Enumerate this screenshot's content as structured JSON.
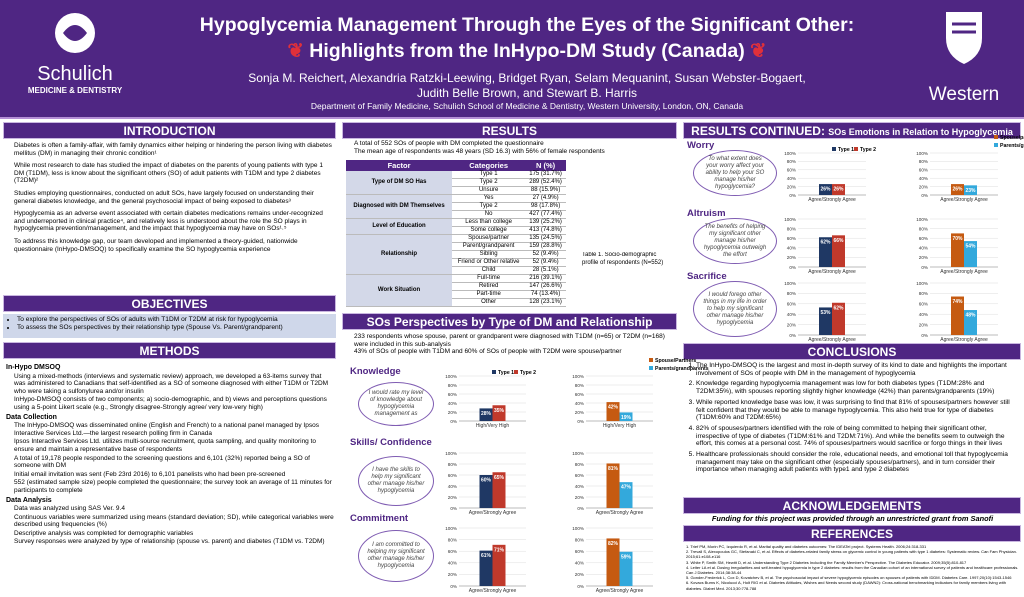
{
  "header": {
    "title_line1": "Hypoglycemia Management Through the Eyes of the Significant Other:",
    "title_line2": "Highlights from the InHypo-DM Study (Canada)",
    "authors_line1": "Sonja M. Reichert, Alexandria Ratzki-Leewing, Bridget Ryan, Selam Mequanint, Susan Webster-Bogaert,",
    "authors_line2": "Judith Belle Brown, and Stewart B. Harris",
    "affiliation": "Department of Family Medicine, Schulich School of Medicine & Dentistry, Western University, London, ON, Canada",
    "logo_left_name": "Schulich",
    "logo_left_sub": "MEDICINE & DENTISTRY",
    "logo_right_name": "Western"
  },
  "intro": {
    "heading": "INTRODUCTION",
    "bullets": [
      "Diabetes is often a family-affair, with family dynamics either helping or hindering the person living with diabetes mellitus (DM) in managing their chronic condition¹",
      "While most research to date has studied the impact of diabetes on the parents of young patients with type 1 DM (T1DM), less is know about the significant others (SO) of adult patients with T1DM and type 2 diabetes (T2DM)²",
      "Studies employing questionnaires, conducted on adult SOs, have largely focused on understanding their general diabetes knowledge, and the general psychosocial impact of being exposed to diabetes³",
      "Hypoglycemia as an adverse event associated with certain diabetes medications remains under-recognized and underreported in clinical practice⁴, and relatively less is understood about the role the SO plays in hypoglycemia prevention/management, and the impact that hypoglycemia may have on SOs¹˒⁵",
      "To address this knowledge gap, our team developed and implemented a theory-guided, nationwide questionnaire (InHypo-DMSOQ) to specifically examine the SO hypoglycemia experience"
    ]
  },
  "objectives": {
    "heading": "OBJECTIVES",
    "items": [
      "To explore the perspectives of SOs of adults with T1DM or T2DM at risk for hypoglycemia",
      "To assess the SOs perspectives by their relationship type (Spouse Vs. Parent/grandparent)"
    ]
  },
  "methods": {
    "heading": "METHODS",
    "sub1": "In-Hypo DMSOQ",
    "b1": [
      "Using a mixed-methods (interviews and systematic review) approach, we developed a 63-items survey that was administered to Canadians that self-identified as a SO of someone diagnosed with either T1DM or T2DM who were taking a sulfonylurea and/or insulin",
      "InHypo-DMSOQ consists of two components; a) socio-demographic, and b) views and perceptions questions using a 5-point Likert scale (e.g., Strongly disagree-Strongly agree/ very low-very high)"
    ],
    "sub2": "Data Collection",
    "b2": [
      "The InHypo-DMSOQ was disseminated online (English and French) to a national panel managed by Ipsos Interactive Services Ltd.—the largest research polling firm in Canada",
      "Ipsos Interactive Services Ltd. utilizes multi-source recruitment, quota sampling, and quality monitoring to ensure and maintain a representative base of respondents",
      "A total of 19,178 people responded to the screening questions and 6,101 (32%) reported being a SO of someone with DM",
      "Initial email invitation was sent (Feb 23rd 2016) to 6,101 panelists who had been pre-screened",
      "552 (estimated sample size) people completed the questionnaire; the survey took an average of 11 minutes for participants to complete"
    ],
    "sub3": "Data Analysis",
    "b3": [
      "Data was analyzed using SAS Ver. 9.4",
      "Continuous variables were summarized using means (standard deviation; SD), while categorical variables were described using frequencies (%)",
      "Descriptive analysis was completed for demographic variables",
      "Survey responses were analyzed by type of relationship (spouse vs. parent) and diabetes (T1DM vs. T2DM)"
    ]
  },
  "results": {
    "heading": "RESULTS",
    "bullets": [
      "A total of 552 SOs of people with DM completed the questionnaire",
      "The mean age of respondents was 48 years (SD 16.3) with 56% of female respondents"
    ],
    "table_headers": [
      "Factor",
      "Categories",
      "N (%)"
    ],
    "table_groups": [
      {
        "factor": "Type of DM SO Has",
        "rows": [
          [
            "Type 1",
            "175 (31.7%)"
          ],
          [
            "Type 2",
            "289 (52.4%)"
          ],
          [
            "Unsure",
            "88 (15.9%)"
          ]
        ]
      },
      {
        "factor": "Diagnosed with DM Themselves",
        "rows": [
          [
            "Yes",
            "27 (4.9%)"
          ],
          [
            "Type 2",
            "98 (17.8%)"
          ],
          [
            "No",
            "427 (77.4%)"
          ]
        ]
      },
      {
        "factor": "Level of Education",
        "rows": [
          [
            "Less than college",
            "139 (25.2%)"
          ],
          [
            "Some college",
            "413 (74.8%)"
          ]
        ]
      },
      {
        "factor": "Relationship",
        "rows": [
          [
            "Spouse/partner",
            "135 (24.5%)"
          ],
          [
            "Parent/grandparent",
            "159 (28.8%)"
          ],
          [
            "Sibling",
            "52 (9.4%)"
          ],
          [
            "Friend or Other relative",
            "52 (9.4%)"
          ],
          [
            "Child",
            "28 (5.1%)"
          ]
        ]
      },
      {
        "factor": "Work Situation",
        "rows": [
          [
            "Full-time",
            "216 (39.1%)"
          ],
          [
            "Retired",
            "147 (26.6%)"
          ],
          [
            "Part-time",
            "74 (13.4%)"
          ],
          [
            "Other",
            "128 (23.1%)"
          ]
        ]
      }
    ],
    "table_caption": "Table 1. Socio-demographic profile of respondents (N=552)"
  },
  "perspectives": {
    "heading": "SOs Perspectives by Type of DM and Relationship",
    "bullets": [
      "233 respondents whose spouse, parent or grandparent were diagnosed with T1DM (n=65) or T2DM (n=168) were included in this sub-analysis",
      "43% of SOs of people with T1DM and  60% of SOs of people with T2DM were spouse/partner"
    ],
    "labels": [
      "Knowledge",
      "Skills/ Confidence",
      "Commitment"
    ],
    "quotes": [
      "I would rate my level of knowledge about hypoglycemia management as",
      "I have the skills to help my significant other manage his/her hypoglycemia",
      "I am committed to helping my significant other manage his/her hypoglycemia"
    ]
  },
  "results2": {
    "heading_main": "RESULTS CONTINUED:",
    "heading_sub": "SOs Emotions in Relation to Hypoglycemia",
    "labels": [
      "Worry",
      "Altruism",
      "Sacrifice"
    ],
    "quotes": [
      "To what extent does your worry affect your ability to help your SO manage his/her hypoglycemia?",
      "The benefits of helping my significant other manage his/her hypoglycemia outweigh the effort",
      "I would forego other things in my life in order to help my significant other manage his/her hypoglycemia"
    ]
  },
  "conclusions": {
    "heading": "CONCLUSIONS",
    "items": [
      "The InHypo-DMSOQ is the largest and most in-depth survey of its kind to date and highlights the important involvement of SOs of people with DM in the management of hypoglycemia",
      "Knowledge regarding hypoglycemia management was low for both diabetes types (T1DM:28% and T2DM:35%), with spouses reporting slightly higher knowledge (42%) than parents/grandparents (19%)",
      "While reported knowledge base was low, it was surprising to find that 81% of spouses/partners however still felt confident that they would be able to manage hypoglycemia.  This also held true for type of diabetes (T1DM:60% and T2DM:65%)",
      "82% of spouses/partners identified with the role of being committed to helping their significant other, irrespective of type of diabetes (T1DM:61% and T2DM:71%).  And while the benefits seem to outweigh the effort, this comes at a personal cost.  74% of spouses/partners would sacrifice or forgo things in their lives",
      "Healthcare professionals should consider the role, educational needs, and emotional toll that hypoglycemia management may take on the significant other (especially spouses/partners), and in turn consider their importance when managing adult patients with type1 and type 2 diabetes"
    ]
  },
  "acknowledgements": {
    "heading": "ACKNOWLEDGEMENTS",
    "text": "Funding for this project was provided through an unrestricted grant from Sanofi"
  },
  "references": {
    "heading": "REFERENCES",
    "items": [
      "1. Trief PM, Morin PC, Izquierdo R, et al. Marital quality and diabetes outcomes: The IDEATel project. Systems Health. 2006;24:318-331",
      "2. Trevall S, Alexopoulos GC, Stefanaki C, et al. Effects of diabetes-related family stress on glycemic control in young patients with type 1 diabetes: Systematic review. Can Fam Physician. 2015;61:e108-e116",
      "3. White P, Smith SM, Hewitt D, et al. Understanding Type 2 Diabetes Including the Family Member's Perspective. The Diabetes Educator. 2009;35(5):810-817",
      "4. Leiter LA et al. Dosing irregularities and self-treated hypoglycemia in type 2 diabetes: results from the Canadian cohort of an international survey of patients and healthcare professionals. Can J Diabetes. 2014;38:38-44",
      "5. Gonder-Frederick L, Cox D, Kovatchev B, et al. The psychosocial impact of severe hypoglycemic episodes on spouses of patients with IDDM. Diabetes Care. 1997;20(10):1543-1546",
      "6. Kovacs Burns K, Nicolucci A, Holt RIG et al. Diabetes Attitudes, Wishes and Needs second study (DAWN2): Cross-national benchmarking indicators for family members living with diabetes. Diabet Med. 2013;30:778-788"
    ]
  },
  "colors": {
    "purple": "#4f2683",
    "type1": "#1f3864",
    "type2": "#c0392b",
    "spouse": "#c55a11",
    "parent": "#33a9dc"
  },
  "chart_data": [
    {
      "type": "bar",
      "group": "Knowledge",
      "panel": "By type of DM",
      "categories": [
        "High/Very High"
      ],
      "series": [
        {
          "name": "Type 1",
          "values": [
            28
          ]
        },
        {
          "name": "Type 2",
          "values": [
            35
          ]
        }
      ],
      "ylim": [
        0,
        100
      ],
      "yticks": [
        "0%",
        "20%",
        "40%",
        "60%",
        "80%",
        "100%"
      ],
      "xlabel": "",
      "ylabel": "",
      "legend": "top-right"
    },
    {
      "type": "bar",
      "group": "Knowledge",
      "panel": "By relationship",
      "categories": [
        "High/Very High"
      ],
      "series": [
        {
          "name": "Spouse/Partners",
          "values": [
            42
          ]
        },
        {
          "name": "Parents/grandparents",
          "values": [
            19
          ]
        }
      ],
      "ylim": [
        0,
        100
      ],
      "yticks": [
        "0%",
        "20%",
        "40%",
        "60%",
        "80%",
        "100%"
      ],
      "xlabel": "",
      "ylabel": "",
      "legend": "top-right"
    },
    {
      "type": "bar",
      "group": "Skills/ Confidence",
      "panel": "By type of DM",
      "categories": [
        "Agree/Strongly Agree"
      ],
      "series": [
        {
          "name": "Type 1",
          "values": [
            60
          ]
        },
        {
          "name": "Type 2",
          "values": [
            65
          ]
        }
      ],
      "ylim": [
        0,
        100
      ],
      "yticks": [
        "0%",
        "20%",
        "40%",
        "60%",
        "80%",
        "100%"
      ],
      "xlabel": "",
      "ylabel": "",
      "legend": ""
    },
    {
      "type": "bar",
      "group": "Skills/ Confidence",
      "panel": "By relationship",
      "categories": [
        "Agree/Strongly Agree"
      ],
      "series": [
        {
          "name": "Spouse/Partners",
          "values": [
            81
          ]
        },
        {
          "name": "Parents/grandparents",
          "values": [
            47
          ]
        }
      ],
      "ylim": [
        0,
        100
      ],
      "yticks": [
        "0%",
        "20%",
        "40%",
        "60%",
        "80%",
        "100%"
      ],
      "xlabel": "",
      "ylabel": "",
      "legend": ""
    },
    {
      "type": "bar",
      "group": "Commitment",
      "panel": "By type of DM",
      "categories": [
        "Agree/Strongly Agree"
      ],
      "series": [
        {
          "name": "Type 1",
          "values": [
            61
          ]
        },
        {
          "name": "Type 2",
          "values": [
            71
          ]
        }
      ],
      "ylim": [
        0,
        100
      ],
      "yticks": [
        "0%",
        "20%",
        "40%",
        "60%",
        "80%",
        "100%"
      ],
      "xlabel": "",
      "ylabel": "",
      "legend": ""
    },
    {
      "type": "bar",
      "group": "Commitment",
      "panel": "By relationship",
      "categories": [
        "Agree/Strongly Agree"
      ],
      "series": [
        {
          "name": "Spouse/Partners",
          "values": [
            82
          ]
        },
        {
          "name": "Parents/grandparents",
          "values": [
            59
          ]
        }
      ],
      "ylim": [
        0,
        100
      ],
      "yticks": [
        "0%",
        "20%",
        "40%",
        "60%",
        "80%",
        "100%"
      ],
      "xlabel": "",
      "ylabel": "",
      "legend": ""
    },
    {
      "type": "bar",
      "group": "Worry",
      "panel": "By type of DM",
      "categories": [
        "Agree/Strongly Agree"
      ],
      "series": [
        {
          "name": "Type 1",
          "values": [
            26
          ]
        },
        {
          "name": "Type 2",
          "values": [
            26
          ]
        }
      ],
      "ylim": [
        0,
        100
      ],
      "yticks": [
        "0%",
        "20%",
        "40%",
        "60%",
        "80%",
        "100%"
      ],
      "xlabel": "",
      "ylabel": "",
      "legend": "top-right"
    },
    {
      "type": "bar",
      "group": "Worry",
      "panel": "By relationship",
      "categories": [
        "Agree/Strongly Agree"
      ],
      "series": [
        {
          "name": "Spouse/partners",
          "values": [
            26
          ]
        },
        {
          "name": "Parents/grandparents",
          "values": [
            23
          ]
        }
      ],
      "ylim": [
        0,
        100
      ],
      "yticks": [
        "0%",
        "20%",
        "40%",
        "60%",
        "80%",
        "100%"
      ],
      "xlabel": "",
      "ylabel": "",
      "legend": "top-right"
    },
    {
      "type": "bar",
      "group": "Altruism",
      "panel": "By type of DM",
      "categories": [
        "Agree/Strongly Agree"
      ],
      "series": [
        {
          "name": "Type 1",
          "values": [
            62
          ]
        },
        {
          "name": "Type 2",
          "values": [
            66
          ]
        }
      ],
      "ylim": [
        0,
        100
      ],
      "yticks": [
        "0%",
        "20%",
        "40%",
        "60%",
        "80%",
        "100%"
      ],
      "xlabel": "",
      "ylabel": "",
      "legend": ""
    },
    {
      "type": "bar",
      "group": "Altruism",
      "panel": "By relationship",
      "categories": [
        "Agree/Strongly Agree"
      ],
      "series": [
        {
          "name": "Spouse/partners",
          "values": [
            70
          ]
        },
        {
          "name": "Parents/grandparents",
          "values": [
            54
          ]
        }
      ],
      "ylim": [
        0,
        100
      ],
      "yticks": [
        "0%",
        "20%",
        "40%",
        "60%",
        "80%",
        "100%"
      ],
      "xlabel": "",
      "ylabel": "",
      "legend": ""
    },
    {
      "type": "bar",
      "group": "Sacrifice",
      "panel": "By type of DM",
      "categories": [
        "Agree/Strongly Agree"
      ],
      "series": [
        {
          "name": "Type 1",
          "values": [
            53
          ]
        },
        {
          "name": "Type 2",
          "values": [
            62
          ]
        }
      ],
      "ylim": [
        0,
        100
      ],
      "yticks": [
        "0%",
        "20%",
        "40%",
        "60%",
        "80%",
        "100%"
      ],
      "xlabel": "",
      "ylabel": "",
      "legend": ""
    },
    {
      "type": "bar",
      "group": "Sacrifice",
      "panel": "By relationship",
      "categories": [
        "Agree/Strongly Agree"
      ],
      "series": [
        {
          "name": "Spouse/partners",
          "values": [
            74
          ]
        },
        {
          "name": "Parents/grandparents",
          "values": [
            48
          ]
        }
      ],
      "ylim": [
        0,
        100
      ],
      "yticks": [
        "0%",
        "20%",
        "40%",
        "60%",
        "80%",
        "100%"
      ],
      "xlabel": "",
      "ylabel": "",
      "legend": ""
    }
  ]
}
